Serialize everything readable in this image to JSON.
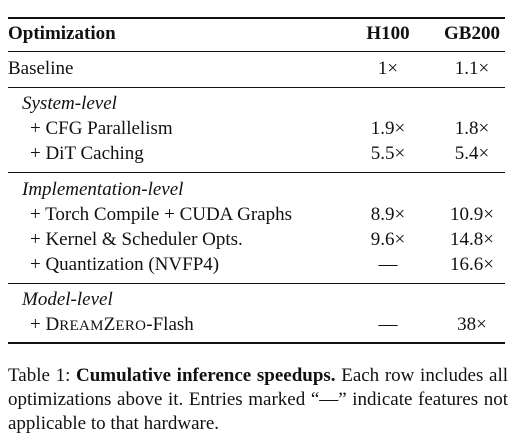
{
  "table": {
    "header": {
      "label": "Optimization",
      "col1": "H100",
      "col2": "GB200"
    },
    "baseline": {
      "label": "Baseline",
      "col1": "1×",
      "col2": "1.1×"
    },
    "sections": [
      {
        "title": "System-level",
        "rows": [
          {
            "label": "+ CFG Parallelism",
            "col1": "1.9×",
            "col2": "1.8×"
          },
          {
            "label": "+ DiT Caching",
            "col1": "5.5×",
            "col2": "5.4×"
          }
        ]
      },
      {
        "title": "Implementation-level",
        "rows": [
          {
            "label": "+ Torch Compile + CUDA Graphs",
            "col1": "8.9×",
            "col2": "10.9×"
          },
          {
            "label": "+ Kernel & Scheduler Opts.",
            "col1": "9.6×",
            "col2": "14.8×"
          },
          {
            "label": "+ Quantization (NVFP4)",
            "col1": "—",
            "col2": "16.6×"
          }
        ]
      },
      {
        "title": "Model-level",
        "rows": [
          {
            "label_prefix": "+ ",
            "label_sc_D": "D",
            "label_sc_ream": "REAM",
            "label_sc_Z": "Z",
            "label_sc_ero": "ERO",
            "label_suffix": "-Flash",
            "col1": "—",
            "col2": "38×"
          }
        ]
      }
    ]
  },
  "caption": {
    "prefix": "Table 1: ",
    "bold": "Cumulative inference speedups.",
    "rest": " Each row includes all optimizations above it. Entries marked “—” indicate features not applicable to that hardware."
  }
}
